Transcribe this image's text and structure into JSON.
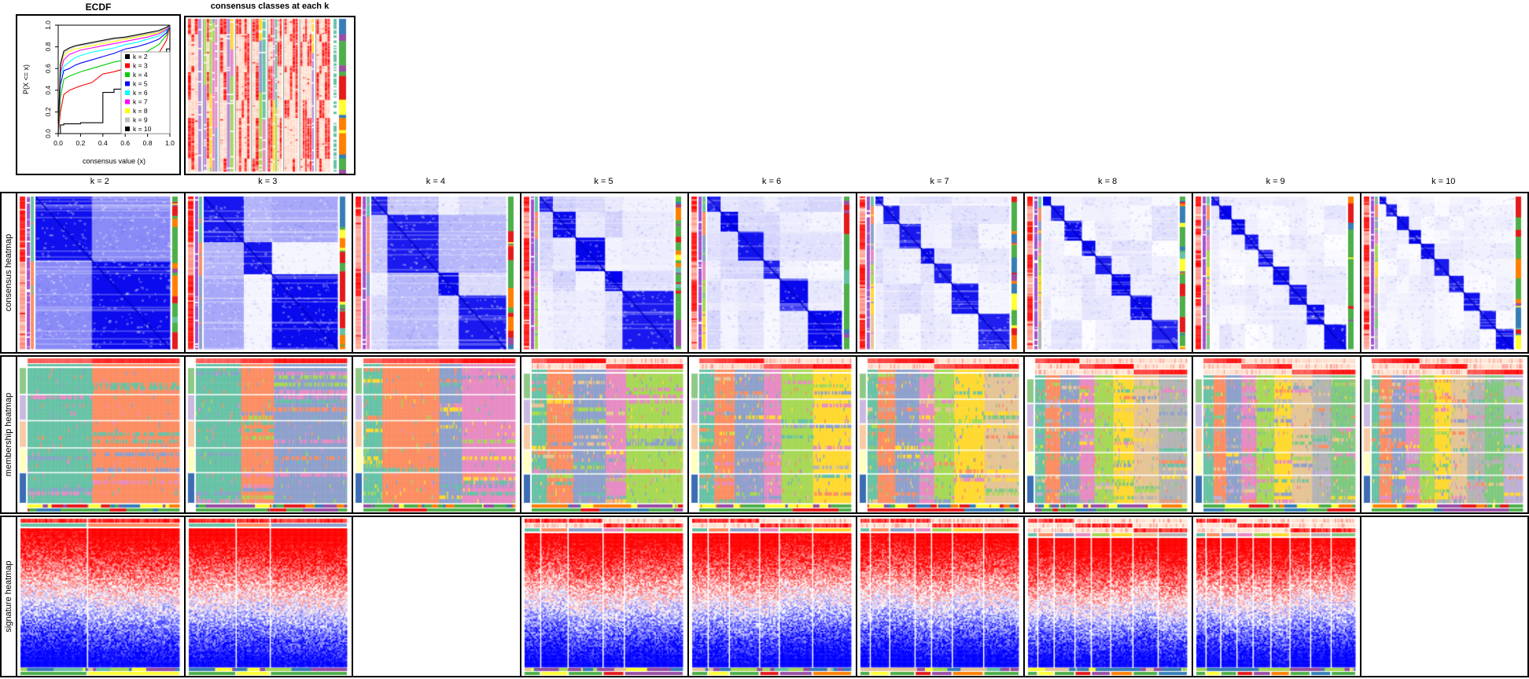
{
  "ecdf": {
    "title": "ECDF",
    "xlabel": "consensus value (x)",
    "ylabel": "P(X <= x)",
    "xticks": [
      "0.0",
      "0.2",
      "0.4",
      "0.6",
      "0.8",
      "1.0"
    ],
    "yticks": [
      "0.0",
      "0.2",
      "0.4",
      "0.6",
      "0.8",
      "1.0"
    ],
    "legend": [
      {
        "label": "k = 2",
        "color": "#000000"
      },
      {
        "label": "k = 3",
        "color": "#FF0000"
      },
      {
        "label": "k = 4",
        "color": "#00CD00"
      },
      {
        "label": "k = 5",
        "color": "#0000FF"
      },
      {
        "label": "k = 6",
        "color": "#00FFFF"
      },
      {
        "label": "k = 7",
        "color": "#FF00FF"
      },
      {
        "label": "k = 8",
        "color": "#FFFF00"
      },
      {
        "label": "k = 9",
        "color": "#BEBEBE"
      },
      {
        "label": "k = 10",
        "color": "#000000"
      }
    ]
  },
  "chart_data": {
    "type": "line",
    "title": "ECDF",
    "xlabel": "consensus value (x)",
    "ylabel": "P(X <= x)",
    "xlim": [
      0,
      1
    ],
    "ylim": [
      0,
      1
    ],
    "grid": false,
    "legend_position": "inside-right-bottom",
    "x": [
      0,
      0.02,
      0.05,
      0.1,
      0.15,
      0.2,
      0.3,
      0.4,
      0.5,
      0.6,
      0.7,
      0.8,
      0.9,
      0.97,
      1.0
    ],
    "series": [
      {
        "name": "k = 2",
        "color": "#000000",
        "step": true,
        "y": [
          0,
          0.08,
          0.09,
          0.09,
          0.09,
          0.1,
          0.1,
          0.38,
          0.41,
          0.45,
          0.52,
          0.58,
          0.66,
          0.78,
          1.0
        ]
      },
      {
        "name": "k = 3",
        "color": "#FF0000",
        "step": false,
        "y": [
          0,
          0.2,
          0.36,
          0.4,
          0.42,
          0.44,
          0.47,
          0.55,
          0.57,
          0.6,
          0.62,
          0.66,
          0.74,
          0.86,
          1.0
        ]
      },
      {
        "name": "k = 4",
        "color": "#00CD00",
        "step": false,
        "y": [
          0,
          0.33,
          0.5,
          0.53,
          0.55,
          0.57,
          0.6,
          0.63,
          0.66,
          0.68,
          0.72,
          0.76,
          0.82,
          0.91,
          1.0
        ]
      },
      {
        "name": "k = 5",
        "color": "#0000FF",
        "step": false,
        "y": [
          0,
          0.45,
          0.58,
          0.6,
          0.63,
          0.65,
          0.68,
          0.71,
          0.74,
          0.78,
          0.8,
          0.83,
          0.87,
          0.93,
          1.0
        ]
      },
      {
        "name": "k = 6",
        "color": "#00FFFF",
        "step": false,
        "y": [
          0,
          0.52,
          0.62,
          0.66,
          0.7,
          0.72,
          0.75,
          0.77,
          0.79,
          0.82,
          0.84,
          0.87,
          0.9,
          0.95,
          1.0
        ]
      },
      {
        "name": "k = 7",
        "color": "#FF00FF",
        "step": false,
        "y": [
          0,
          0.56,
          0.68,
          0.73,
          0.75,
          0.77,
          0.79,
          0.81,
          0.83,
          0.85,
          0.87,
          0.89,
          0.92,
          0.96,
          1.0
        ]
      },
      {
        "name": "k = 8",
        "color": "#FFFF00",
        "step": false,
        "y": [
          0,
          0.6,
          0.72,
          0.76,
          0.78,
          0.79,
          0.81,
          0.83,
          0.85,
          0.87,
          0.89,
          0.91,
          0.93,
          0.97,
          1.0
        ]
      },
      {
        "name": "k = 9",
        "color": "#BEBEBE",
        "step": false,
        "y": [
          0,
          0.62,
          0.74,
          0.78,
          0.8,
          0.81,
          0.83,
          0.85,
          0.87,
          0.88,
          0.9,
          0.92,
          0.94,
          0.97,
          1.0
        ]
      },
      {
        "name": "k = 10",
        "color": "#000000",
        "step": false,
        "y": [
          0,
          0.64,
          0.76,
          0.79,
          0.81,
          0.82,
          0.84,
          0.86,
          0.88,
          0.89,
          0.91,
          0.93,
          0.95,
          0.98,
          1.0
        ]
      }
    ]
  },
  "classes_panel": {
    "title": "consensus classes at each k",
    "right_bar_segments": [
      [
        "#377EB8",
        0.1
      ],
      [
        "#984EA3",
        0.045
      ],
      [
        "#4DAF4A",
        0.16
      ],
      [
        "#984EA3",
        0.04
      ],
      [
        "#4DAF4A",
        0.03
      ],
      [
        "#E41A1C",
        0.155
      ],
      [
        "#FFFF33",
        0.1
      ],
      [
        "#377EB8",
        0.02
      ],
      [
        "#FF7F00",
        0.08
      ],
      [
        "#FFFF33",
        0.02
      ],
      [
        "#FF7F00",
        0.14
      ],
      [
        "#377EB8",
        0.025
      ],
      [
        "#4DAF4A",
        0.075
      ],
      [
        "#984EA3",
        0.03
      ]
    ],
    "row_segments": [
      0.1,
      0.045,
      0.16,
      0.04,
      0.185,
      0.12,
      0.26,
      0.09
    ]
  },
  "grid": {
    "row_labels": [
      "consensus heatmap",
      "membership heatmap",
      "signature heatmap"
    ],
    "columns": [
      {
        "k": 2,
        "label": "k = 2",
        "has_signature": true,
        "fractions": [
          0.42,
          0.58
        ]
      },
      {
        "k": 3,
        "label": "k = 3",
        "has_signature": true,
        "fractions": [
          0.3,
          0.21,
          0.49
        ]
      },
      {
        "k": 4,
        "label": "k = 4",
        "has_signature": false,
        "fractions": [
          0.12,
          0.38,
          0.15,
          0.35
        ]
      },
      {
        "k": 5,
        "label": "k = 5",
        "has_signature": true,
        "fractions": [
          0.1,
          0.17,
          0.22,
          0.13,
          0.38
        ]
      },
      {
        "k": 6,
        "label": "k = 6",
        "has_signature": true,
        "fractions": [
          0.1,
          0.13,
          0.19,
          0.12,
          0.21,
          0.25
        ]
      },
      {
        "k": 7,
        "label": "k = 7",
        "has_signature": true,
        "fractions": [
          0.06,
          0.12,
          0.16,
          0.1,
          0.13,
          0.2,
          0.23
        ]
      },
      {
        "k": 8,
        "label": "k = 8",
        "has_signature": true,
        "fractions": [
          0.06,
          0.1,
          0.13,
          0.1,
          0.12,
          0.14,
          0.16,
          0.19
        ]
      },
      {
        "k": 9,
        "label": "k = 9",
        "has_signature": true,
        "fractions": [
          0.06,
          0.09,
          0.1,
          0.1,
          0.11,
          0.12,
          0.13,
          0.13,
          0.16
        ]
      },
      {
        "k": 10,
        "label": "k = 10",
        "has_signature": false,
        "fractions": [
          0.05,
          0.08,
          0.09,
          0.09,
          0.1,
          0.11,
          0.11,
          0.12,
          0.12,
          0.13
        ]
      }
    ]
  },
  "palettes": {
    "set2": [
      "#66C2A5",
      "#FC8D62",
      "#8DA0CB",
      "#E78AC3",
      "#A6D854",
      "#FFD92F",
      "#E5C494",
      "#B3B3B3",
      "#7FC97F",
      "#BEAED4"
    ],
    "set1": [
      "#4DAF4A",
      "#E41A1C",
      "#377EB8",
      "#FF7F00",
      "#FFFF33",
      "#984EA3",
      "#A65628",
      "#F781BF"
    ],
    "membership_bands": [
      {
        "color": "#90C987",
        "frac": 0.2
      },
      {
        "color": "#C9B9E0",
        "frac": 0.19
      },
      {
        "color": "#F8CBA4",
        "frac": 0.2
      },
      {
        "color": "#FFFFBF",
        "frac": 0.18
      },
      {
        "color": "#3C6DB4",
        "frac": 0.23
      }
    ],
    "consensus_high": "#0000EB",
    "anno_purple": "#A050D0",
    "anno_red": "#FF2000",
    "anno_teal": "#66C2A5"
  }
}
